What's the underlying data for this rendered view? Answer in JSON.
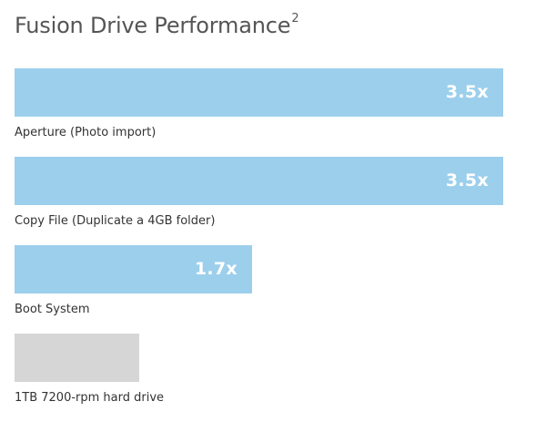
{
  "chart_data": {
    "type": "bar",
    "orientation": "horizontal",
    "title": "Fusion Drive Performance",
    "title_superscript": "2",
    "categories": [
      "Aperture (Photo import)",
      "Copy File (Duplicate a 4GB folder)",
      "Boot System",
      "1TB 7200-rpm hard drive"
    ],
    "values": [
      3.5,
      3.5,
      1.7,
      1.0
    ],
    "value_labels": [
      "3.5x",
      "3.5x",
      "1.7x",
      ""
    ],
    "colors": [
      "#9ccfec",
      "#9ccfec",
      "#9ccfec",
      "#d6d6d6"
    ],
    "xlim": [
      0,
      3.5
    ],
    "grid": false,
    "legend": "none"
  }
}
